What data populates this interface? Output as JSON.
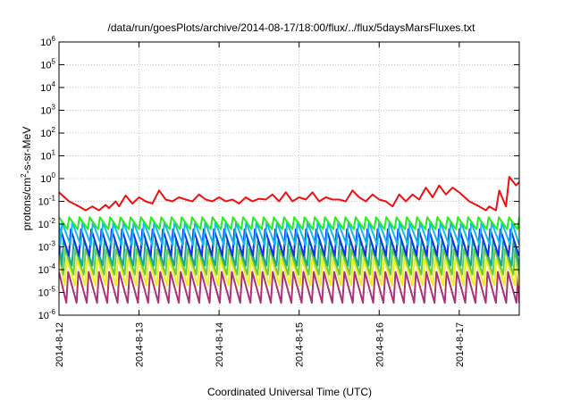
{
  "chart_data": {
    "type": "line",
    "title": "/data/run/goesPlots/archive/2014-08-17/18:00/flux/../flux/5daysMarsFluxes.txt",
    "xlabel": "Coordinated Universal Time (UTC)",
    "ylabel": "protons/cm2-s-sr-MeV",
    "yscale": "log",
    "ylim": [
      1e-06,
      1000000.0
    ],
    "y_ticks": [
      {
        "exp": -6,
        "base": "10",
        "sup": "-6"
      },
      {
        "exp": -5,
        "base": "10",
        "sup": "-5"
      },
      {
        "exp": -4,
        "base": "10",
        "sup": "-4"
      },
      {
        "exp": -3,
        "base": "10",
        "sup": "-3"
      },
      {
        "exp": -2,
        "base": "10",
        "sup": "-2"
      },
      {
        "exp": -1,
        "base": "10",
        "sup": "-1"
      },
      {
        "exp": 0,
        "base": "10",
        "sup": "0"
      },
      {
        "exp": 1,
        "base": "10",
        "sup": "1"
      },
      {
        "exp": 2,
        "base": "10",
        "sup": "2"
      },
      {
        "exp": 3,
        "base": "10",
        "sup": "3"
      },
      {
        "exp": 4,
        "base": "10",
        "sup": "4"
      },
      {
        "exp": 5,
        "base": "10",
        "sup": "5"
      },
      {
        "exp": 6,
        "base": "10",
        "sup": "6"
      }
    ],
    "xlim": [
      "2014-08-12 00:00",
      "2014-08-17 18:00"
    ],
    "x_ticks": [
      "2014-8-12",
      "2014-8-13",
      "2014-8-14",
      "2014-8-15",
      "2014-8-16",
      "2014-8-17"
    ],
    "grid": true,
    "series": [
      {
        "color": "#ee1111",
        "x": [
          "2014-08-12 00:00",
          "2014-08-12 03:00",
          "2014-08-12 06:00",
          "2014-08-12 08:00",
          "2014-08-12 10:00",
          "2014-08-12 12:00",
          "2014-08-12 14:00",
          "2014-08-12 15:00",
          "2014-08-12 17:00",
          "2014-08-12 18:00",
          "2014-08-12 20:00",
          "2014-08-12 22:00",
          "2014-08-13 00:00",
          "2014-08-13 02:00",
          "2014-08-13 04:00",
          "2014-08-13 06:00",
          "2014-08-13 08:00",
          "2014-08-13 10:00",
          "2014-08-13 12:00",
          "2014-08-13 14:00",
          "2014-08-13 16:00",
          "2014-08-13 18:00",
          "2014-08-13 20:00",
          "2014-08-13 22:00",
          "2014-08-14 00:00",
          "2014-08-14 02:00",
          "2014-08-14 04:00",
          "2014-08-14 06:00",
          "2014-08-14 08:00",
          "2014-08-14 10:00",
          "2014-08-14 12:00",
          "2014-08-14 14:00",
          "2014-08-14 16:00",
          "2014-08-14 18:00",
          "2014-08-14 20:00",
          "2014-08-14 22:00",
          "2014-08-15 00:00",
          "2014-08-15 02:00",
          "2014-08-15 04:00",
          "2014-08-15 06:00",
          "2014-08-15 08:00",
          "2014-08-15 10:00",
          "2014-08-15 12:00",
          "2014-08-15 14:00",
          "2014-08-15 16:00",
          "2014-08-15 18:00",
          "2014-08-15 20:00",
          "2014-08-15 22:00",
          "2014-08-16 00:00",
          "2014-08-16 02:00",
          "2014-08-16 04:00",
          "2014-08-16 06:00",
          "2014-08-16 08:00",
          "2014-08-16 10:00",
          "2014-08-16 12:00",
          "2014-08-16 14:00",
          "2014-08-16 16:00",
          "2014-08-16 18:00",
          "2014-08-16 20:00",
          "2014-08-16 22:00",
          "2014-08-17 00:00",
          "2014-08-17 03:00",
          "2014-08-17 06:00",
          "2014-08-17 08:00",
          "2014-08-17 09:00",
          "2014-08-17 11:00",
          "2014-08-17 12:00",
          "2014-08-17 14:00",
          "2014-08-17 15:00",
          "2014-08-17 17:00",
          "2014-08-17 18:00"
        ],
        "y": [
          0.25,
          0.1,
          0.06,
          0.04,
          0.06,
          0.04,
          0.07,
          0.05,
          0.1,
          0.06,
          0.18,
          0.08,
          0.15,
          0.1,
          0.08,
          0.3,
          0.12,
          0.1,
          0.15,
          0.12,
          0.1,
          0.2,
          0.12,
          0.1,
          0.15,
          0.1,
          0.12,
          0.08,
          0.15,
          0.1,
          0.13,
          0.12,
          0.2,
          0.1,
          0.25,
          0.1,
          0.15,
          0.12,
          0.25,
          0.1,
          0.15,
          0.12,
          0.12,
          0.1,
          0.3,
          0.15,
          0.1,
          0.2,
          0.12,
          0.1,
          0.06,
          0.2,
          0.1,
          0.2,
          0.12,
          0.4,
          0.15,
          0.5,
          0.2,
          0.4,
          0.25,
          0.1,
          0.06,
          0.04,
          0.06,
          0.04,
          0.3,
          0.06,
          1.2,
          0.5,
          0.7
        ]
      },
      {
        "color": "#22ee22",
        "base": 0.006,
        "peak": 0.02,
        "offset": 0.0
      },
      {
        "color": "#11bbee",
        "base": 0.0012,
        "peak": 0.012,
        "offset": 0.3
      },
      {
        "color": "#1133ee",
        "base": 0.0004,
        "peak": 0.006,
        "offset": 0.15
      },
      {
        "color": "#11aa99",
        "base": 0.00015,
        "peak": 0.002,
        "offset": 0.45
      },
      {
        "color": "#66cc44",
        "base": 6e-05,
        "peak": 0.0008,
        "offset": 0.6
      },
      {
        "color": "#eeee22",
        "base": 2e-05,
        "peak": 0.0003,
        "offset": 0.75
      },
      {
        "color": "#aa3377",
        "base": 3.5e-06,
        "peak": 8e-05,
        "offset": 0.9
      }
    ]
  }
}
